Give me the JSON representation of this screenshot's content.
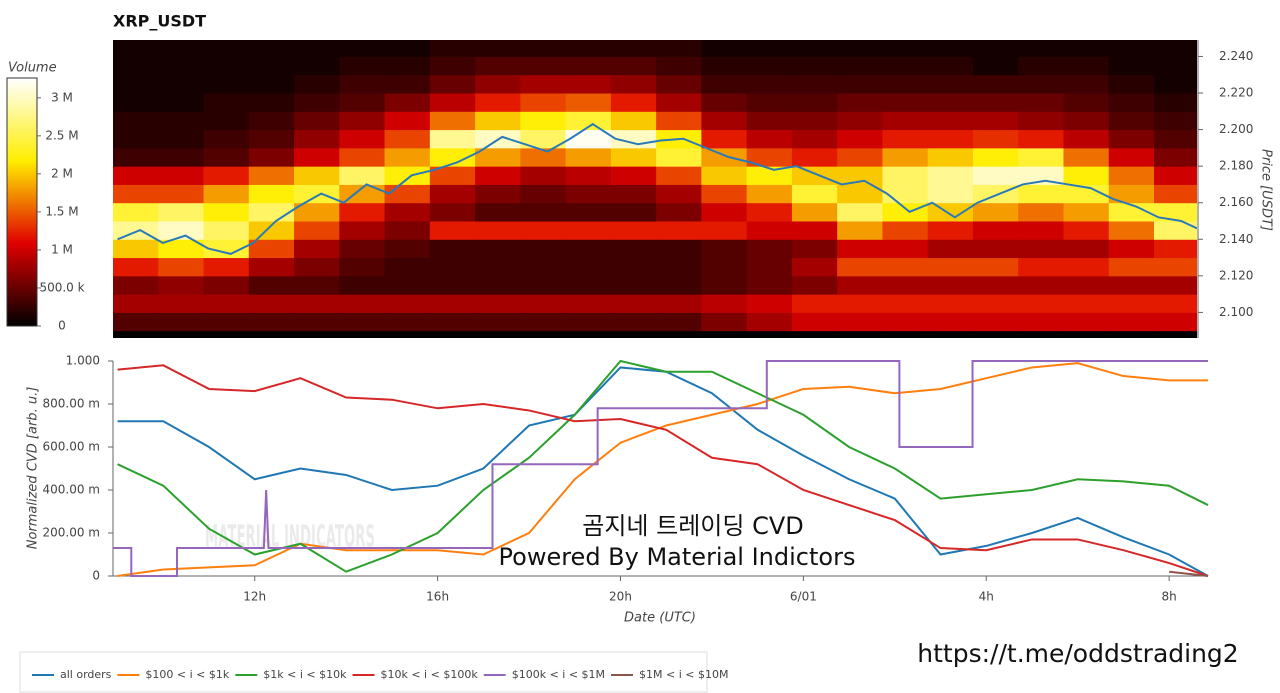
{
  "chart_data": [
    {
      "type": "heatmap",
      "title": "XRP_USDT",
      "ylabel": "Price [USDT]",
      "colorbar_label": "Volume",
      "colormap": [
        "#000000",
        "#e00000",
        "#ffee00",
        "#ffffff"
      ],
      "xlim": [
        8.9,
        32.85
      ],
      "ylim": [
        2.086,
        2.249
      ],
      "yticks": [
        {
          "value": 2.1,
          "label": "2.100"
        },
        {
          "value": 2.12,
          "label": "2.120"
        },
        {
          "value": 2.14,
          "label": "2.140"
        },
        {
          "value": 2.16,
          "label": "2.160"
        },
        {
          "value": 2.18,
          "label": "2.180"
        },
        {
          "value": 2.2,
          "label": "2.200"
        },
        {
          "value": 2.22,
          "label": "2.220"
        },
        {
          "value": 2.24,
          "label": "2.240"
        }
      ],
      "zlim": [
        0,
        3260000
      ],
      "zticks": [
        0,
        {
          "value": 500000,
          "label": "500.0 k"
        },
        {
          "value": 1000000,
          "label": "1 M"
        },
        {
          "value": 1500000,
          "label": "1.5 M"
        },
        {
          "value": 2000000,
          "label": "2 M"
        },
        {
          "value": 2500000,
          "label": "2.5 M"
        },
        {
          "value": 3000000,
          "label": "3 M"
        }
      ],
      "x": [
        9.4,
        10.4,
        11.4,
        12.4,
        13.4,
        14.4,
        15.4,
        16.4,
        17.4,
        18.4,
        19.4,
        20.4,
        21.4,
        22.4,
        23.4,
        24.4,
        25.4,
        26.4,
        27.4,
        28.4,
        29.4,
        30.4,
        31.4,
        32.4
      ],
      "y": [
        2.095,
        2.105,
        2.115,
        2.125,
        2.135,
        2.145,
        2.155,
        2.165,
        2.175,
        2.185,
        2.195,
        2.205,
        2.215,
        2.225,
        2.235,
        2.245
      ],
      "z": [
        [
          400000.0,
          400000.0,
          400000.0,
          400000.0,
          400000.0,
          400000.0,
          400000.0,
          400000.0,
          400000.0,
          400000.0,
          400000.0,
          400000.0,
          400000.0,
          600000.0,
          800000.0,
          1000000.0,
          1000000.0,
          1000000.0,
          1000000.0,
          1000000.0,
          1000000.0,
          1000000.0,
          1000000.0,
          1000000.0
        ],
        [
          800000.0,
          800000.0,
          800000.0,
          800000.0,
          800000.0,
          800000.0,
          800000.0,
          800000.0,
          800000.0,
          800000.0,
          800000.0,
          800000.0,
          800000.0,
          900000.0,
          1000000.0,
          1200000.0,
          1200000.0,
          1200000.0,
          1200000.0,
          1200000.0,
          1200000.0,
          1200000.0,
          1200000.0,
          1200000.0
        ],
        [
          600000.0,
          700000.0,
          600000.0,
          400000.0,
          400000.0,
          300000.0,
          300000.0,
          300000.0,
          300000.0,
          300000.0,
          300000.0,
          300000.0,
          300000.0,
          400000.0,
          500000.0,
          600000.0,
          800000.0,
          800000.0,
          800000.0,
          800000.0,
          800000.0,
          800000.0,
          800000.0,
          800000.0
        ],
        [
          1200000.0,
          1400000.0,
          1200000.0,
          800000.0,
          600000.0,
          400000.0,
          300000.0,
          300000.0,
          300000.0,
          300000.0,
          300000.0,
          300000.0,
          300000.0,
          400000.0,
          500000.0,
          800000.0,
          1400000.0,
          1400000.0,
          1400000.0,
          1400000.0,
          1200000.0,
          1200000.0,
          1400000.0,
          1400000.0
        ],
        [
          2000000.0,
          2200000.0,
          2400000.0,
          1400000.0,
          800000.0,
          500000.0,
          400000.0,
          300000.0,
          300000.0,
          300000.0,
          300000.0,
          300000.0,
          300000.0,
          400000.0,
          500000.0,
          600000.0,
          1000000.0,
          1000000.0,
          800000.0,
          800000.0,
          800000.0,
          800000.0,
          1000000.0,
          1200000.0
        ],
        [
          2800000.0,
          3000000.0,
          2600000.0,
          2000000.0,
          1400000.0,
          800000.0,
          600000.0,
          1200000.0,
          1200000.0,
          1200000.0,
          1200000.0,
          1200000.0,
          1200000.0,
          1200000.0,
          1000000.0,
          1000000.0,
          1800000.0,
          1400000.0,
          1200000.0,
          1000000.0,
          1000000.0,
          1200000.0,
          1600000.0,
          2600000.0
        ],
        [
          2400000.0,
          2600000.0,
          2200000.0,
          2600000.0,
          1800000.0,
          1200000.0,
          800000.0,
          600000.0,
          400000.0,
          400000.0,
          400000.0,
          400000.0,
          600000.0,
          1000000.0,
          1200000.0,
          1800000.0,
          2600000.0,
          2200000.0,
          2000000.0,
          1800000.0,
          1600000.0,
          1800000.0,
          2400000.0,
          2400000.0
        ],
        [
          1400000.0,
          1400000.0,
          1800000.0,
          2200000.0,
          2400000.0,
          1800000.0,
          1400000.0,
          800000.0,
          600000.0,
          500000.0,
          600000.0,
          600000.0,
          800000.0,
          1400000.0,
          1800000.0,
          2400000.0,
          2000000.0,
          2600000.0,
          2800000.0,
          2600000.0,
          2400000.0,
          2400000.0,
          1800000.0,
          1400000.0
        ],
        [
          1000000.0,
          1000000.0,
          1200000.0,
          1600000.0,
          2000000.0,
          2600000.0,
          2200000.0,
          1400000.0,
          1000000.0,
          800000.0,
          900000.0,
          1000000.0,
          1400000.0,
          2000000.0,
          2200000.0,
          2000000.0,
          2000000.0,
          2600000.0,
          2800000.0,
          3000000.0,
          3000000.0,
          2200000.0,
          1600000.0,
          1000000.0
        ],
        [
          300000.0,
          300000.0,
          400000.0,
          600000.0,
          1000000.0,
          1400000.0,
          1800000.0,
          2200000.0,
          1800000.0,
          1600000.0,
          1800000.0,
          2000000.0,
          2400000.0,
          1800000.0,
          1400000.0,
          1200000.0,
          1400000.0,
          1800000.0,
          2000000.0,
          2200000.0,
          2400000.0,
          1600000.0,
          1000000.0,
          600000.0
        ],
        [
          200000.0,
          200000.0,
          300000.0,
          400000.0,
          700000.0,
          1000000.0,
          1400000.0,
          2800000.0,
          3000000.0,
          2600000.0,
          3200000.0,
          3000000.0,
          2200000.0,
          1200000.0,
          900000.0,
          800000.0,
          1000000.0,
          1200000.0,
          1200000.0,
          1300000.0,
          1200000.0,
          900000.0,
          600000.0,
          400000.0
        ],
        [
          200000.0,
          200000.0,
          200000.0,
          300000.0,
          500000.0,
          700000.0,
          1000000.0,
          1600000.0,
          2000000.0,
          2200000.0,
          2400000.0,
          2000000.0,
          1400000.0,
          800000.0,
          600000.0,
          600000.0,
          700000.0,
          800000.0,
          800000.0,
          800000.0,
          700000.0,
          600000.0,
          400000.0,
          300000.0
        ],
        [
          100000.0,
          100000.0,
          200000.0,
          200000.0,
          300000.0,
          400000.0,
          600000.0,
          900000.0,
          1200000.0,
          1400000.0,
          1500000.0,
          1200000.0,
          800000.0,
          500000.0,
          400000.0,
          400000.0,
          500000.0,
          500000.0,
          500000.0,
          500000.0,
          500000.0,
          400000.0,
          300000.0,
          200000.0
        ],
        [
          100000.0,
          100000.0,
          100000.0,
          100000.0,
          200000.0,
          300000.0,
          300000.0,
          500000.0,
          700000.0,
          800000.0,
          800000.0,
          700000.0,
          500000.0,
          300000.0,
          300000.0,
          300000.0,
          300000.0,
          300000.0,
          300000.0,
          300000.0,
          300000.0,
          300000.0,
          200000.0,
          100000.0
        ],
        [
          100000.0,
          100000.0,
          100000.0,
          100000.0,
          100000.0,
          200000.0,
          200000.0,
          300000.0,
          400000.0,
          400000.0,
          400000.0,
          400000.0,
          300000.0,
          200000.0,
          200000.0,
          200000.0,
          200000.0,
          200000.0,
          200000.0,
          100000.0,
          200000.0,
          200000.0,
          100000.0,
          100000.0
        ],
        [
          100000.0,
          100000.0,
          100000.0,
          100000.0,
          100000.0,
          100000.0,
          100000.0,
          200000.0,
          200000.0,
          200000.0,
          200000.0,
          200000.0,
          200000.0,
          100000.0,
          100000.0,
          100000.0,
          100000.0,
          100000.0,
          100000.0,
          100000.0,
          100000.0,
          100000.0,
          100000.0,
          100000.0
        ]
      ],
      "price": {
        "color": "#2a7ab8",
        "x": [
          9,
          9.5,
          10,
          10.5,
          11,
          11.5,
          12,
          12.5,
          13,
          13.5,
          14,
          14.5,
          15,
          15.5,
          16,
          16.5,
          17,
          17.5,
          18,
          18.5,
          19,
          19.5,
          20,
          20.5,
          21,
          21.5,
          22,
          22.5,
          23,
          23.5,
          24,
          24.5,
          25,
          25.5,
          26,
          26.5,
          27,
          27.5,
          28,
          28.5,
          29,
          29.5,
          30,
          30.5,
          31,
          31.5,
          32,
          32.5,
          32.85
        ],
        "values": [
          2.14,
          2.145,
          2.138,
          2.142,
          2.135,
          2.132,
          2.138,
          2.15,
          2.158,
          2.165,
          2.16,
          2.17,
          2.165,
          2.175,
          2.178,
          2.182,
          2.188,
          2.196,
          2.192,
          2.188,
          2.195,
          2.203,
          2.195,
          2.192,
          2.194,
          2.195,
          2.19,
          2.185,
          2.182,
          2.178,
          2.18,
          2.175,
          2.17,
          2.172,
          2.165,
          2.155,
          2.16,
          2.152,
          2.16,
          2.165,
          2.17,
          2.172,
          2.17,
          2.168,
          2.162,
          2.158,
          2.152,
          2.15,
          2.146
        ]
      }
    },
    {
      "type": "line",
      "xlabel": "Date (UTC)",
      "ylabel": "Normalized CVD [arb. u.]",
      "xlim": [
        8.9,
        32.85
      ],
      "ylim": [
        0,
        1
      ],
      "xticks": [
        {
          "value": 12,
          "label": "12h"
        },
        {
          "value": 16,
          "label": "16h"
        },
        {
          "value": 20,
          "label": "20h"
        },
        {
          "value": 24,
          "label": "6/01"
        },
        {
          "value": 28,
          "label": "4h"
        },
        {
          "value": 32,
          "label": "8h"
        }
      ],
      "yticks": [
        0,
        {
          "value": 0.2,
          "label": "200.00 m"
        },
        {
          "value": 0.4,
          "label": "400.00 m"
        },
        {
          "value": 0.6,
          "label": "600.00 m"
        },
        {
          "value": 0.8,
          "label": "800.00 m"
        },
        {
          "value": 1,
          "label": "1.000"
        }
      ],
      "x": [
        9,
        10,
        11,
        12,
        13,
        14,
        15,
        16,
        17,
        18,
        19,
        20,
        21,
        22,
        23,
        24,
        25,
        26,
        27,
        28,
        29,
        30,
        31,
        32,
        32.85
      ],
      "series": [
        {
          "name": "all orders",
          "color": "#1f77b4",
          "values": [
            0.72,
            0.72,
            0.6,
            0.45,
            0.5,
            0.47,
            0.4,
            0.42,
            0.5,
            0.7,
            0.75,
            0.97,
            0.95,
            0.85,
            0.68,
            0.56,
            0.45,
            0.36,
            0.1,
            0.14,
            0.2,
            0.27,
            0.18,
            0.1,
            0
          ]
        },
        {
          "name": "$100 < i < $1k",
          "color": "#ff7f0e",
          "values": [
            0,
            0.03,
            0.04,
            0.05,
            0.15,
            0.12,
            0.12,
            0.12,
            0.1,
            0.2,
            0.45,
            0.62,
            0.7,
            0.75,
            0.8,
            0.87,
            0.88,
            0.85,
            0.87,
            0.92,
            0.97,
            0.99,
            0.93,
            0.91,
            0.91
          ]
        },
        {
          "name": "$1k < i < $10k",
          "color": "#2ca02c",
          "values": [
            0.52,
            0.42,
            0.22,
            0.1,
            0.15,
            0.02,
            0.1,
            0.2,
            0.4,
            0.55,
            0.75,
            1,
            0.95,
            0.95,
            0.85,
            0.75,
            0.6,
            0.5,
            0.36,
            0.38,
            0.4,
            0.45,
            0.44,
            0.42,
            0.33
          ]
        },
        {
          "name": "$10k < i < $100k",
          "color": "#d62728",
          "values": [
            0.96,
            0.98,
            0.87,
            0.86,
            0.92,
            0.83,
            0.82,
            0.78,
            0.8,
            0.77,
            0.72,
            0.73,
            0.68,
            0.55,
            0.52,
            0.4,
            0.33,
            0.26,
            0.13,
            0.12,
            0.17,
            0.17,
            0.12,
            0.06,
            0
          ]
        },
        {
          "name": "$100k < i < $1M",
          "color": "#9467bd",
          "x": [
            8.9,
            9.3,
            9.3,
            10.3,
            10.3,
            12.2,
            12.25,
            12.3,
            17.2,
            17.2,
            19.5,
            19.5,
            23.2,
            23.2,
            26.1,
            26.1,
            27.7,
            27.7,
            32.85
          ],
          "values": [
            0.13,
            0.13,
            0,
            0,
            0.13,
            0.13,
            0.4,
            0.13,
            0.13,
            0.52,
            0.52,
            0.78,
            0.78,
            1,
            1,
            0.6,
            0.6,
            1,
            1
          ]
        },
        {
          "name": "$1M < i < $10M",
          "color": "#8c564b",
          "x": [
            32,
            32.85
          ],
          "values": [
            0.02,
            0
          ]
        }
      ],
      "annotations": [
        "곰지네 트레이딩 CVD",
        "Powered By Material Indictors"
      ],
      "watermark": "MATERIAL INDICATORS"
    }
  ],
  "footer": "https://t.me/oddstrading2"
}
